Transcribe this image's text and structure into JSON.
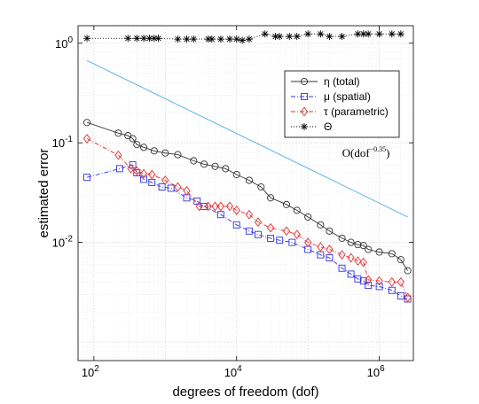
{
  "chart_data": {
    "type": "line",
    "xlabel": "degrees of freedom (dof)",
    "ylabel": "estimated error",
    "x_scale": "log",
    "y_scale": "log",
    "xlim": [
      60,
      3000000
    ],
    "ylim": [
      0.00065,
      1.5
    ],
    "grid": true,
    "legend_position": "top-right",
    "x_ticks": [
      {
        "value": 100,
        "label": "10",
        "exp": "2"
      },
      {
        "value": 10000,
        "label": "10",
        "exp": "4"
      },
      {
        "value": 1000000,
        "label": "10",
        "exp": "6"
      }
    ],
    "y_ticks": [
      {
        "value": 1,
        "label": "10",
        "exp": "0"
      },
      {
        "value": 0.1,
        "label": "10",
        "exp": "-1"
      },
      {
        "value": 0.01,
        "label": "10",
        "exp": "-2"
      }
    ],
    "annotation": {
      "text": "O(dof",
      "sup": "−0.35",
      "close": ")",
      "x": 650000,
      "y": 0.072
    },
    "series": [
      {
        "name": "η (total)",
        "color": "#333333",
        "marker": "circle",
        "dash": "solid",
        "x": [
          80,
          220,
          300,
          350,
          400,
          500,
          700,
          1000,
          1500,
          2500,
          3500,
          5000,
          7000,
          10000,
          15000,
          22000,
          30000,
          50000,
          70000,
          100000,
          150000,
          200000,
          300000,
          400000,
          500000,
          600000,
          700000,
          1000000,
          1500000,
          2000000,
          2500000
        ],
        "y": [
          0.16,
          0.125,
          0.118,
          0.11,
          0.096,
          0.09,
          0.083,
          0.079,
          0.076,
          0.066,
          0.061,
          0.058,
          0.055,
          0.048,
          0.042,
          0.036,
          0.028,
          0.024,
          0.021,
          0.018,
          0.015,
          0.013,
          0.011,
          0.01,
          0.0095,
          0.0093,
          0.0085,
          0.008,
          0.0077,
          0.0067,
          0.0052
        ]
      },
      {
        "name": "μ (spatial)",
        "color": "#3333dd",
        "marker": "square",
        "dash": "dashdot",
        "x": [
          80,
          230,
          350,
          400,
          500,
          650,
          900,
          1200,
          2000,
          2800,
          3500,
          6000,
          10000,
          15000,
          20000,
          30000,
          40000,
          60000,
          100000,
          150000,
          200000,
          300000,
          400000,
          500000,
          600000,
          700000,
          1000000,
          1500000,
          2000000,
          2500000
        ],
        "y": [
          0.045,
          0.055,
          0.06,
          0.05,
          0.043,
          0.04,
          0.036,
          0.035,
          0.028,
          0.026,
          0.023,
          0.019,
          0.015,
          0.013,
          0.012,
          0.011,
          0.0105,
          0.01,
          0.0085,
          0.0075,
          0.007,
          0.0055,
          0.0048,
          0.0043,
          0.0041,
          0.0037,
          0.0036,
          0.0033,
          0.0029,
          0.0027
        ]
      },
      {
        "name": "τ (parametric)",
        "color": "#e03030",
        "marker": "diamond",
        "dash": "dashdot",
        "x": [
          80,
          220,
          330,
          400,
          500,
          650,
          1000,
          1500,
          2000,
          3000,
          4000,
          5000,
          6000,
          8000,
          10000,
          15000,
          20000,
          30000,
          50000,
          70000,
          100000,
          150000,
          200000,
          300000,
          400000,
          500000,
          600000,
          700000,
          1000000,
          1500000,
          2000000,
          2500000
        ],
        "y": [
          0.11,
          0.075,
          0.055,
          0.052,
          0.049,
          0.048,
          0.042,
          0.036,
          0.033,
          0.023,
          0.023,
          0.023,
          0.023,
          0.023,
          0.021,
          0.019,
          0.016,
          0.014,
          0.013,
          0.012,
          0.01,
          0.009,
          0.0085,
          0.0075,
          0.007,
          0.0065,
          0.0063,
          0.0042,
          0.0041,
          0.004,
          0.004,
          0.0028
        ]
      },
      {
        "name": "Θ",
        "color": "#000000",
        "marker": "star",
        "dash": "dotted",
        "x": [
          80,
          300,
          400,
          500,
          600,
          700,
          800,
          1500,
          2000,
          2500,
          4000,
          4500,
          6000,
          8000,
          10000,
          12000,
          15000,
          25000,
          35000,
          40000,
          55000,
          70000,
          100000,
          150000,
          200000,
          300000,
          500000,
          600000,
          700000,
          1000000,
          1500000,
          2000000
        ],
        "y": [
          1.12,
          1.12,
          1.12,
          1.12,
          1.12,
          1.12,
          1.12,
          1.1,
          1.1,
          1.1,
          1.1,
          1.1,
          1.1,
          1.1,
          1.1,
          1.07,
          1.1,
          1.24,
          1.17,
          1.17,
          1.17,
          1.17,
          1.24,
          1.24,
          1.17,
          1.17,
          1.24,
          1.24,
          1.24,
          1.24,
          1.24,
          1.24
        ]
      }
    ],
    "reference_line": {
      "name": "O(dof^-0.35)",
      "color": "#5ab4e8",
      "x": [
        80,
        2500000
      ],
      "y": [
        0.67,
        0.018
      ]
    }
  }
}
